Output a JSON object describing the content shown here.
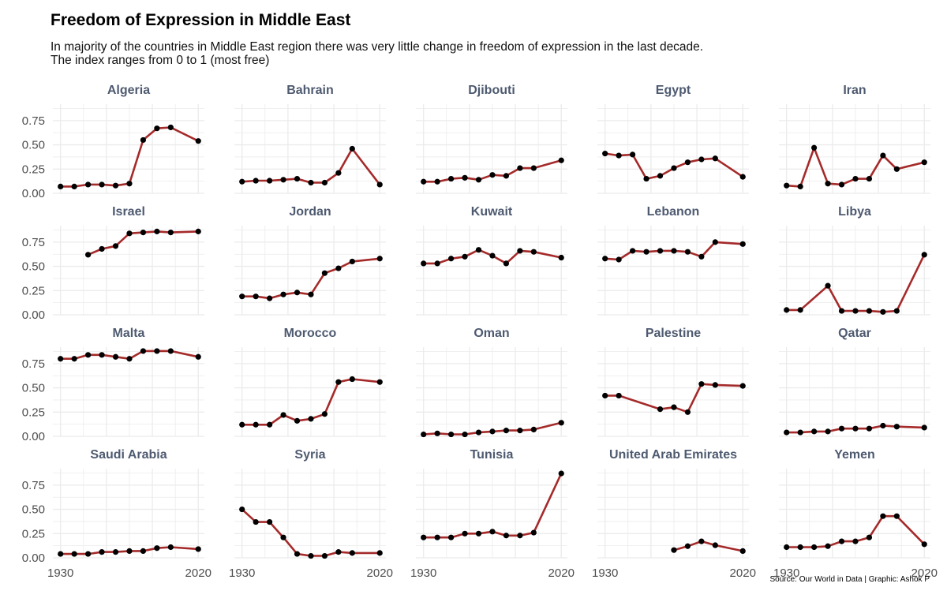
{
  "title": "Freedom of Expression in Middle East",
  "subtitle_line1": "In majority of the countries in Middle East region there was very little change in freedom of expression in the last decade.",
  "subtitle_line2": "The index ranges from 0 to 1 (most free)",
  "caption": "Source: Our World in Data | Graphic: Ashok P",
  "colors": {
    "line": "#a52a2a",
    "point": "#000000",
    "grid": "#ebebeb",
    "strip_text": "#4e5a70"
  },
  "chart_data": {
    "type": "line",
    "facet_layout": {
      "rows": 4,
      "cols": 5
    },
    "xlim": [
      1925,
      2024
    ],
    "ylim": [
      0,
      0.92
    ],
    "x_ticks": [
      1930,
      2020
    ],
    "y_ticks": [
      0.0,
      0.25,
      0.5,
      0.75
    ],
    "y_tick_labels": [
      "0.00",
      "0.25",
      "0.50",
      "0.75"
    ],
    "grid": true,
    "panels": [
      {
        "name": "Algeria",
        "points": [
          [
            1930,
            0.07
          ],
          [
            1939,
            0.07
          ],
          [
            1948,
            0.09
          ],
          [
            1957,
            0.09
          ],
          [
            1966,
            0.08
          ],
          [
            1975,
            0.1
          ],
          [
            1984,
            0.55
          ],
          [
            1993,
            0.67
          ],
          [
            2002,
            0.68
          ],
          [
            2020,
            0.54
          ]
        ]
      },
      {
        "name": "Bahrain",
        "points": [
          [
            1930,
            0.12
          ],
          [
            1939,
            0.13
          ],
          [
            1948,
            0.13
          ],
          [
            1957,
            0.14
          ],
          [
            1966,
            0.15
          ],
          [
            1975,
            0.11
          ],
          [
            1984,
            0.11
          ],
          [
            1993,
            0.21
          ],
          [
            2002,
            0.46
          ],
          [
            2020,
            0.09
          ]
        ]
      },
      {
        "name": "Djibouti",
        "points": [
          [
            1930,
            0.12
          ],
          [
            1939,
            0.12
          ],
          [
            1948,
            0.15
          ],
          [
            1957,
            0.16
          ],
          [
            1966,
            0.14
          ],
          [
            1975,
            0.19
          ],
          [
            1984,
            0.18
          ],
          [
            1993,
            0.26
          ],
          [
            2002,
            0.26
          ],
          [
            2020,
            0.34
          ]
        ]
      },
      {
        "name": "Egypt",
        "points": [
          [
            1930,
            0.41
          ],
          [
            1939,
            0.39
          ],
          [
            1948,
            0.4
          ],
          [
            1957,
            0.15
          ],
          [
            1966,
            0.18
          ],
          [
            1975,
            0.26
          ],
          [
            1984,
            0.32
          ],
          [
            1993,
            0.35
          ],
          [
            2002,
            0.36
          ],
          [
            2020,
            0.17
          ]
        ]
      },
      {
        "name": "Iran",
        "points": [
          [
            1930,
            0.08
          ],
          [
            1939,
            0.07
          ],
          [
            1948,
            0.47
          ],
          [
            1957,
            0.1
          ],
          [
            1966,
            0.09
          ],
          [
            1975,
            0.15
          ],
          [
            1984,
            0.15
          ],
          [
            1993,
            0.39
          ],
          [
            2002,
            0.25
          ],
          [
            2020,
            0.32
          ]
        ]
      },
      {
        "name": "Israel",
        "points": [
          [
            1948,
            0.62
          ],
          [
            1957,
            0.68
          ],
          [
            1966,
            0.71
          ],
          [
            1975,
            0.84
          ],
          [
            1984,
            0.85
          ],
          [
            1993,
            0.86
          ],
          [
            2002,
            0.85
          ],
          [
            2020,
            0.86
          ]
        ]
      },
      {
        "name": "Jordan",
        "points": [
          [
            1930,
            0.19
          ],
          [
            1939,
            0.19
          ],
          [
            1948,
            0.17
          ],
          [
            1957,
            0.21
          ],
          [
            1966,
            0.23
          ],
          [
            1975,
            0.21
          ],
          [
            1984,
            0.43
          ],
          [
            1993,
            0.48
          ],
          [
            2002,
            0.55
          ],
          [
            2020,
            0.58
          ]
        ]
      },
      {
        "name": "Kuwait",
        "points": [
          [
            1930,
            0.53
          ],
          [
            1939,
            0.53
          ],
          [
            1948,
            0.58
          ],
          [
            1957,
            0.6
          ],
          [
            1966,
            0.67
          ],
          [
            1975,
            0.61
          ],
          [
            1984,
            0.53
          ],
          [
            1993,
            0.66
          ],
          [
            2002,
            0.65
          ],
          [
            2020,
            0.59
          ]
        ]
      },
      {
        "name": "Lebanon",
        "points": [
          [
            1930,
            0.58
          ],
          [
            1939,
            0.57
          ],
          [
            1948,
            0.66
          ],
          [
            1957,
            0.65
          ],
          [
            1966,
            0.66
          ],
          [
            1975,
            0.66
          ],
          [
            1984,
            0.65
          ],
          [
            1993,
            0.6
          ],
          [
            2002,
            0.75
          ],
          [
            2020,
            0.73
          ]
        ]
      },
      {
        "name": "Libya",
        "points": [
          [
            1930,
            0.05
          ],
          [
            1939,
            0.05
          ],
          [
            1957,
            0.3
          ],
          [
            1966,
            0.04
          ],
          [
            1975,
            0.04
          ],
          [
            1984,
            0.04
          ],
          [
            1993,
            0.03
          ],
          [
            2002,
            0.04
          ],
          [
            2020,
            0.62
          ]
        ]
      },
      {
        "name": "Malta",
        "points": [
          [
            1930,
            0.8
          ],
          [
            1939,
            0.8
          ],
          [
            1948,
            0.84
          ],
          [
            1957,
            0.84
          ],
          [
            1966,
            0.82
          ],
          [
            1975,
            0.8
          ],
          [
            1984,
            0.88
          ],
          [
            1993,
            0.88
          ],
          [
            2002,
            0.88
          ],
          [
            2020,
            0.82
          ]
        ]
      },
      {
        "name": "Morocco",
        "points": [
          [
            1930,
            0.12
          ],
          [
            1939,
            0.12
          ],
          [
            1948,
            0.12
          ],
          [
            1957,
            0.22
          ],
          [
            1966,
            0.16
          ],
          [
            1975,
            0.18
          ],
          [
            1984,
            0.23
          ],
          [
            1993,
            0.56
          ],
          [
            2002,
            0.59
          ],
          [
            2020,
            0.56
          ]
        ]
      },
      {
        "name": "Oman",
        "points": [
          [
            1930,
            0.02
          ],
          [
            1939,
            0.03
          ],
          [
            1948,
            0.02
          ],
          [
            1957,
            0.02
          ],
          [
            1966,
            0.04
          ],
          [
            1975,
            0.05
          ],
          [
            1984,
            0.06
          ],
          [
            1993,
            0.06
          ],
          [
            2002,
            0.07
          ],
          [
            2020,
            0.14
          ]
        ]
      },
      {
        "name": "Palestine",
        "points": [
          [
            1930,
            0.42
          ],
          [
            1939,
            0.42
          ],
          [
            1966,
            0.28
          ],
          [
            1975,
            0.3
          ],
          [
            1984,
            0.25
          ],
          [
            1993,
            0.54
          ],
          [
            2002,
            0.53
          ],
          [
            2020,
            0.52
          ]
        ]
      },
      {
        "name": "Qatar",
        "points": [
          [
            1930,
            0.04
          ],
          [
            1939,
            0.04
          ],
          [
            1948,
            0.05
          ],
          [
            1957,
            0.05
          ],
          [
            1966,
            0.08
          ],
          [
            1975,
            0.08
          ],
          [
            1984,
            0.08
          ],
          [
            1993,
            0.11
          ],
          [
            2002,
            0.1
          ],
          [
            2020,
            0.09
          ]
        ]
      },
      {
        "name": "Saudi Arabia",
        "points": [
          [
            1930,
            0.04
          ],
          [
            1939,
            0.04
          ],
          [
            1948,
            0.04
          ],
          [
            1957,
            0.06
          ],
          [
            1966,
            0.06
          ],
          [
            1975,
            0.07
          ],
          [
            1984,
            0.07
          ],
          [
            1993,
            0.1
          ],
          [
            2002,
            0.11
          ],
          [
            2020,
            0.09
          ]
        ]
      },
      {
        "name": "Syria",
        "points": [
          [
            1930,
            0.5
          ],
          [
            1939,
            0.37
          ],
          [
            1948,
            0.37
          ],
          [
            1957,
            0.21
          ],
          [
            1966,
            0.04
          ],
          [
            1975,
            0.02
          ],
          [
            1984,
            0.02
          ],
          [
            1993,
            0.06
          ],
          [
            2002,
            0.05
          ],
          [
            2020,
            0.05
          ]
        ]
      },
      {
        "name": "Tunisia",
        "points": [
          [
            1930,
            0.21
          ],
          [
            1939,
            0.21
          ],
          [
            1948,
            0.21
          ],
          [
            1957,
            0.25
          ],
          [
            1966,
            0.25
          ],
          [
            1975,
            0.27
          ],
          [
            1984,
            0.23
          ],
          [
            1993,
            0.23
          ],
          [
            2002,
            0.26
          ],
          [
            2020,
            0.87
          ]
        ]
      },
      {
        "name": "United Arab Emirates",
        "points": [
          [
            1975,
            0.08
          ],
          [
            1984,
            0.12
          ],
          [
            1993,
            0.17
          ],
          [
            2002,
            0.13
          ],
          [
            2020,
            0.07
          ]
        ]
      },
      {
        "name": "Yemen",
        "points": [
          [
            1930,
            0.11
          ],
          [
            1939,
            0.11
          ],
          [
            1948,
            0.11
          ],
          [
            1957,
            0.12
          ],
          [
            1966,
            0.17
          ],
          [
            1975,
            0.17
          ],
          [
            1984,
            0.21
          ],
          [
            1993,
            0.43
          ],
          [
            2002,
            0.43
          ],
          [
            2020,
            0.14
          ]
        ]
      }
    ]
  }
}
